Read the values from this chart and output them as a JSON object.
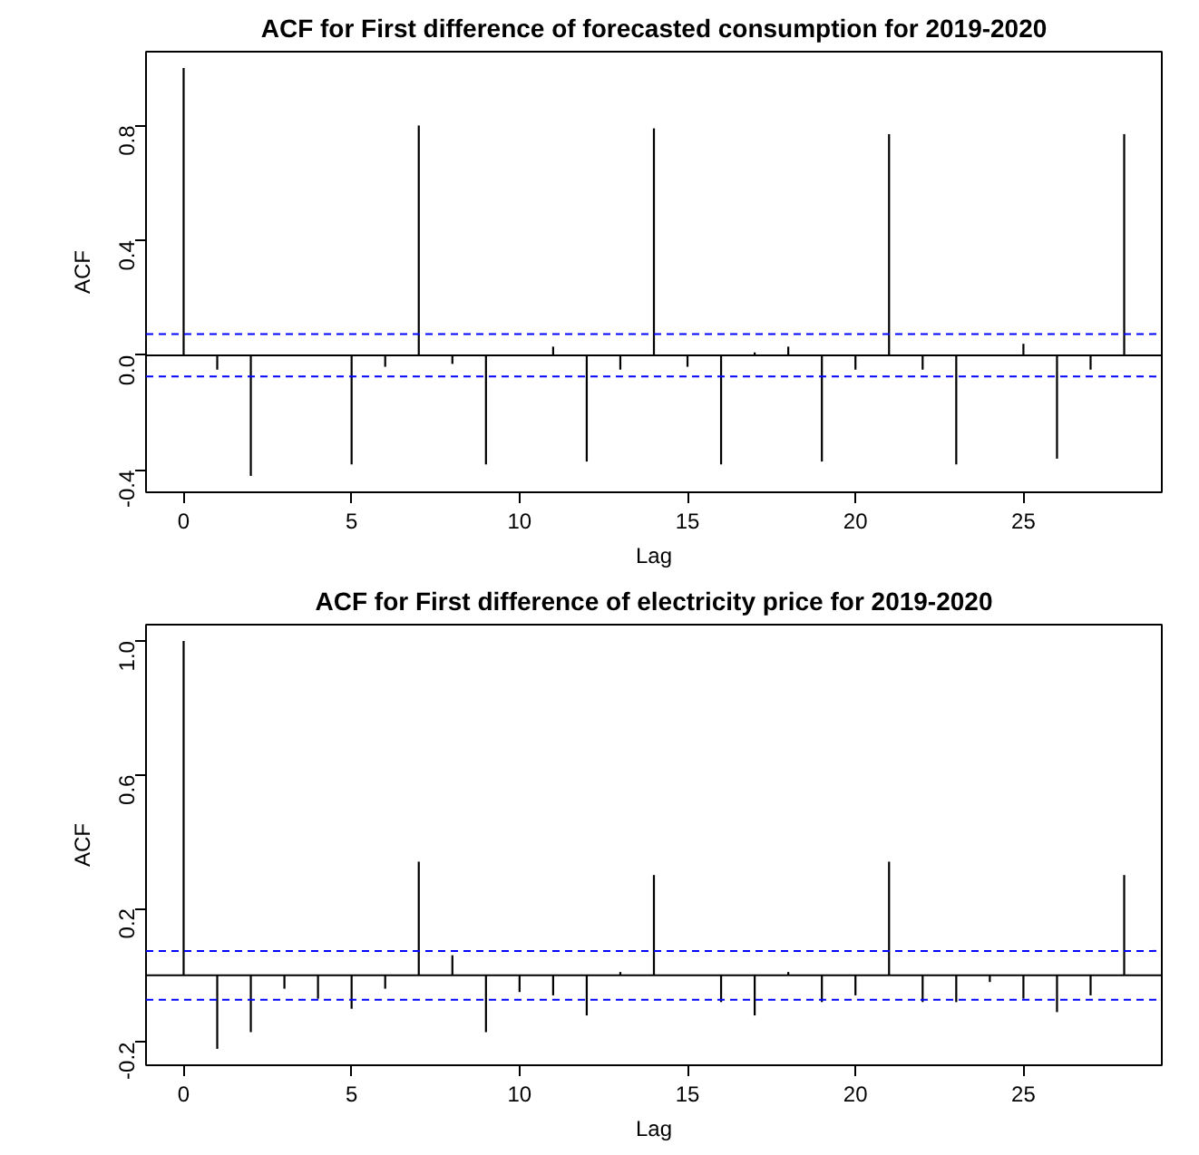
{
  "chart_data": [
    {
      "type": "bar",
      "title": "ACF for First difference of forecasted consumption for 2019-2020",
      "xlabel": "Lag",
      "ylabel": "ACF",
      "x": [
        0,
        1,
        2,
        3,
        4,
        5,
        6,
        7,
        8,
        9,
        10,
        11,
        12,
        13,
        14,
        15,
        16,
        17,
        18,
        19,
        20,
        21,
        22,
        23,
        24,
        25,
        26,
        27,
        28
      ],
      "series": [
        {
          "color": "#000000",
          "values": [
            1.0,
            -0.05,
            -0.42,
            0.0,
            0.0,
            -0.38,
            -0.04,
            0.8,
            -0.03,
            -0.38,
            0.0,
            0.03,
            -0.37,
            -0.05,
            0.79,
            -0.04,
            -0.38,
            0.01,
            0.03,
            -0.37,
            -0.05,
            0.77,
            -0.05,
            -0.38,
            0.0,
            0.04,
            -0.36,
            -0.05,
            0.77
          ]
        }
      ],
      "xlim": [
        -1.12,
        29.12
      ],
      "ylim": [
        -0.477,
        1.057
      ],
      "xticks": [
        0,
        5,
        10,
        15,
        20,
        25
      ],
      "yticks": [
        {
          "value": -0.4,
          "label": "-0.4"
        },
        {
          "value": 0,
          "label": "0.0"
        },
        {
          "value": 0.4,
          "label": "0.4"
        },
        {
          "value": 0.8,
          "label": "0.8"
        }
      ],
      "ref_lines": [
        {
          "axis": "y",
          "value": 0,
          "color": "#000000",
          "line_style": "solid"
        },
        {
          "axis": "y",
          "value": 0.074,
          "color": "#0000ff",
          "line_style": "dashed"
        },
        {
          "axis": "y",
          "value": -0.074,
          "color": "#0000ff",
          "line_style": "dashed"
        }
      ],
      "grid": false
    },
    {
      "type": "bar",
      "title": "ACF for First difference of electricity price for 2019-2020",
      "xlabel": "Lag",
      "ylabel": "ACF",
      "x": [
        0,
        1,
        2,
        3,
        4,
        5,
        6,
        7,
        8,
        9,
        10,
        11,
        12,
        13,
        14,
        15,
        16,
        17,
        18,
        19,
        20,
        21,
        22,
        23,
        24,
        25,
        26,
        27,
        28
      ],
      "series": [
        {
          "color": "#000000",
          "values": [
            1.0,
            -0.22,
            -0.17,
            -0.04,
            -0.07,
            -0.1,
            -0.04,
            0.34,
            0.06,
            -0.17,
            -0.05,
            -0.06,
            -0.12,
            0.01,
            0.3,
            0.0,
            -0.08,
            -0.12,
            0.01,
            -0.08,
            -0.06,
            0.34,
            -0.08,
            -0.08,
            -0.02,
            -0.07,
            -0.11,
            -0.06,
            0.3
          ]
        }
      ],
      "xlim": [
        -1.12,
        29.12
      ],
      "ylim": [
        -0.269,
        1.049
      ],
      "xticks": [
        0,
        5,
        10,
        15,
        20,
        25
      ],
      "yticks": [
        {
          "value": -0.2,
          "label": "-0.2"
        },
        {
          "value": 0.2,
          "label": "0.2"
        },
        {
          "value": 0.6,
          "label": "0.6"
        },
        {
          "value": 1.0,
          "label": "1.0"
        }
      ],
      "ref_lines": [
        {
          "axis": "y",
          "value": 0,
          "color": "#000000",
          "line_style": "solid"
        },
        {
          "axis": "y",
          "value": 0.073,
          "color": "#0000ff",
          "line_style": "dashed"
        },
        {
          "axis": "y",
          "value": -0.073,
          "color": "#0000ff",
          "line_style": "dashed"
        }
      ],
      "grid": false
    }
  ]
}
